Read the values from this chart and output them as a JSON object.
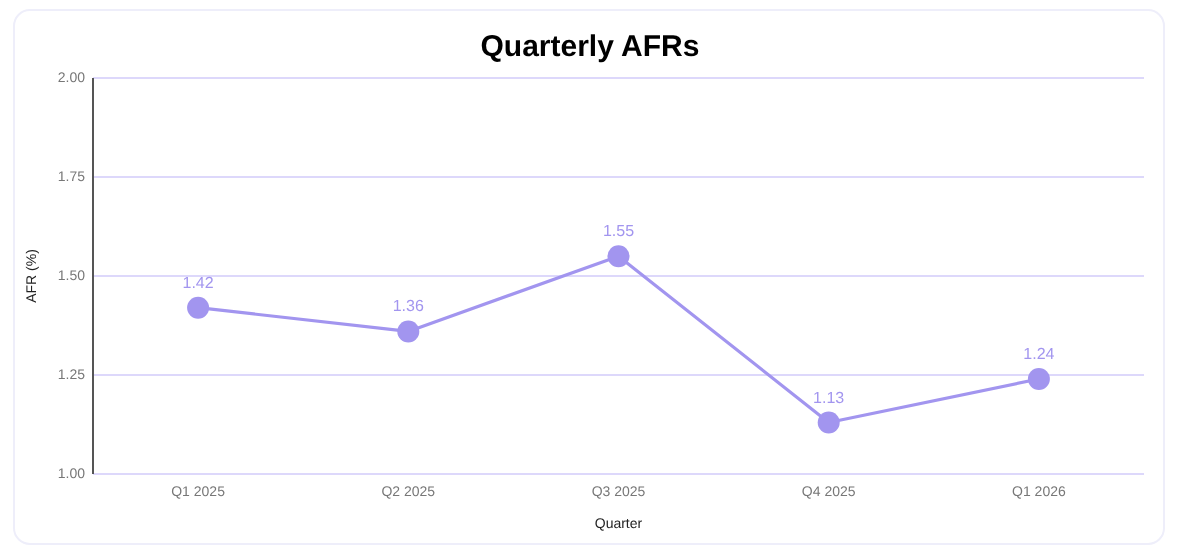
{
  "chart_data": {
    "type": "line",
    "title": "Quarterly AFRs",
    "xlabel": "Quarter",
    "ylabel": "AFR (%)",
    "categories": [
      "Q1 2025",
      "Q2 2025",
      "Q3 2025",
      "Q4 2025",
      "Q1 2026"
    ],
    "series": [
      {
        "color": "#a295ef",
        "values": [
          1.42,
          1.36,
          1.55,
          1.13,
          1.24
        ]
      }
    ],
    "ylim": [
      1,
      2
    ],
    "yticks": [
      {
        "value": 1,
        "label": "1.00"
      },
      {
        "value": 1.25,
        "label": "1.25"
      },
      {
        "value": 1.5,
        "label": "1.50"
      },
      {
        "value": 1.75,
        "label": "1.75"
      },
      {
        "value": 2,
        "label": "2.00"
      }
    ],
    "grid": "y",
    "marker": "circle",
    "data_labels": true,
    "line_style": "solid"
  }
}
